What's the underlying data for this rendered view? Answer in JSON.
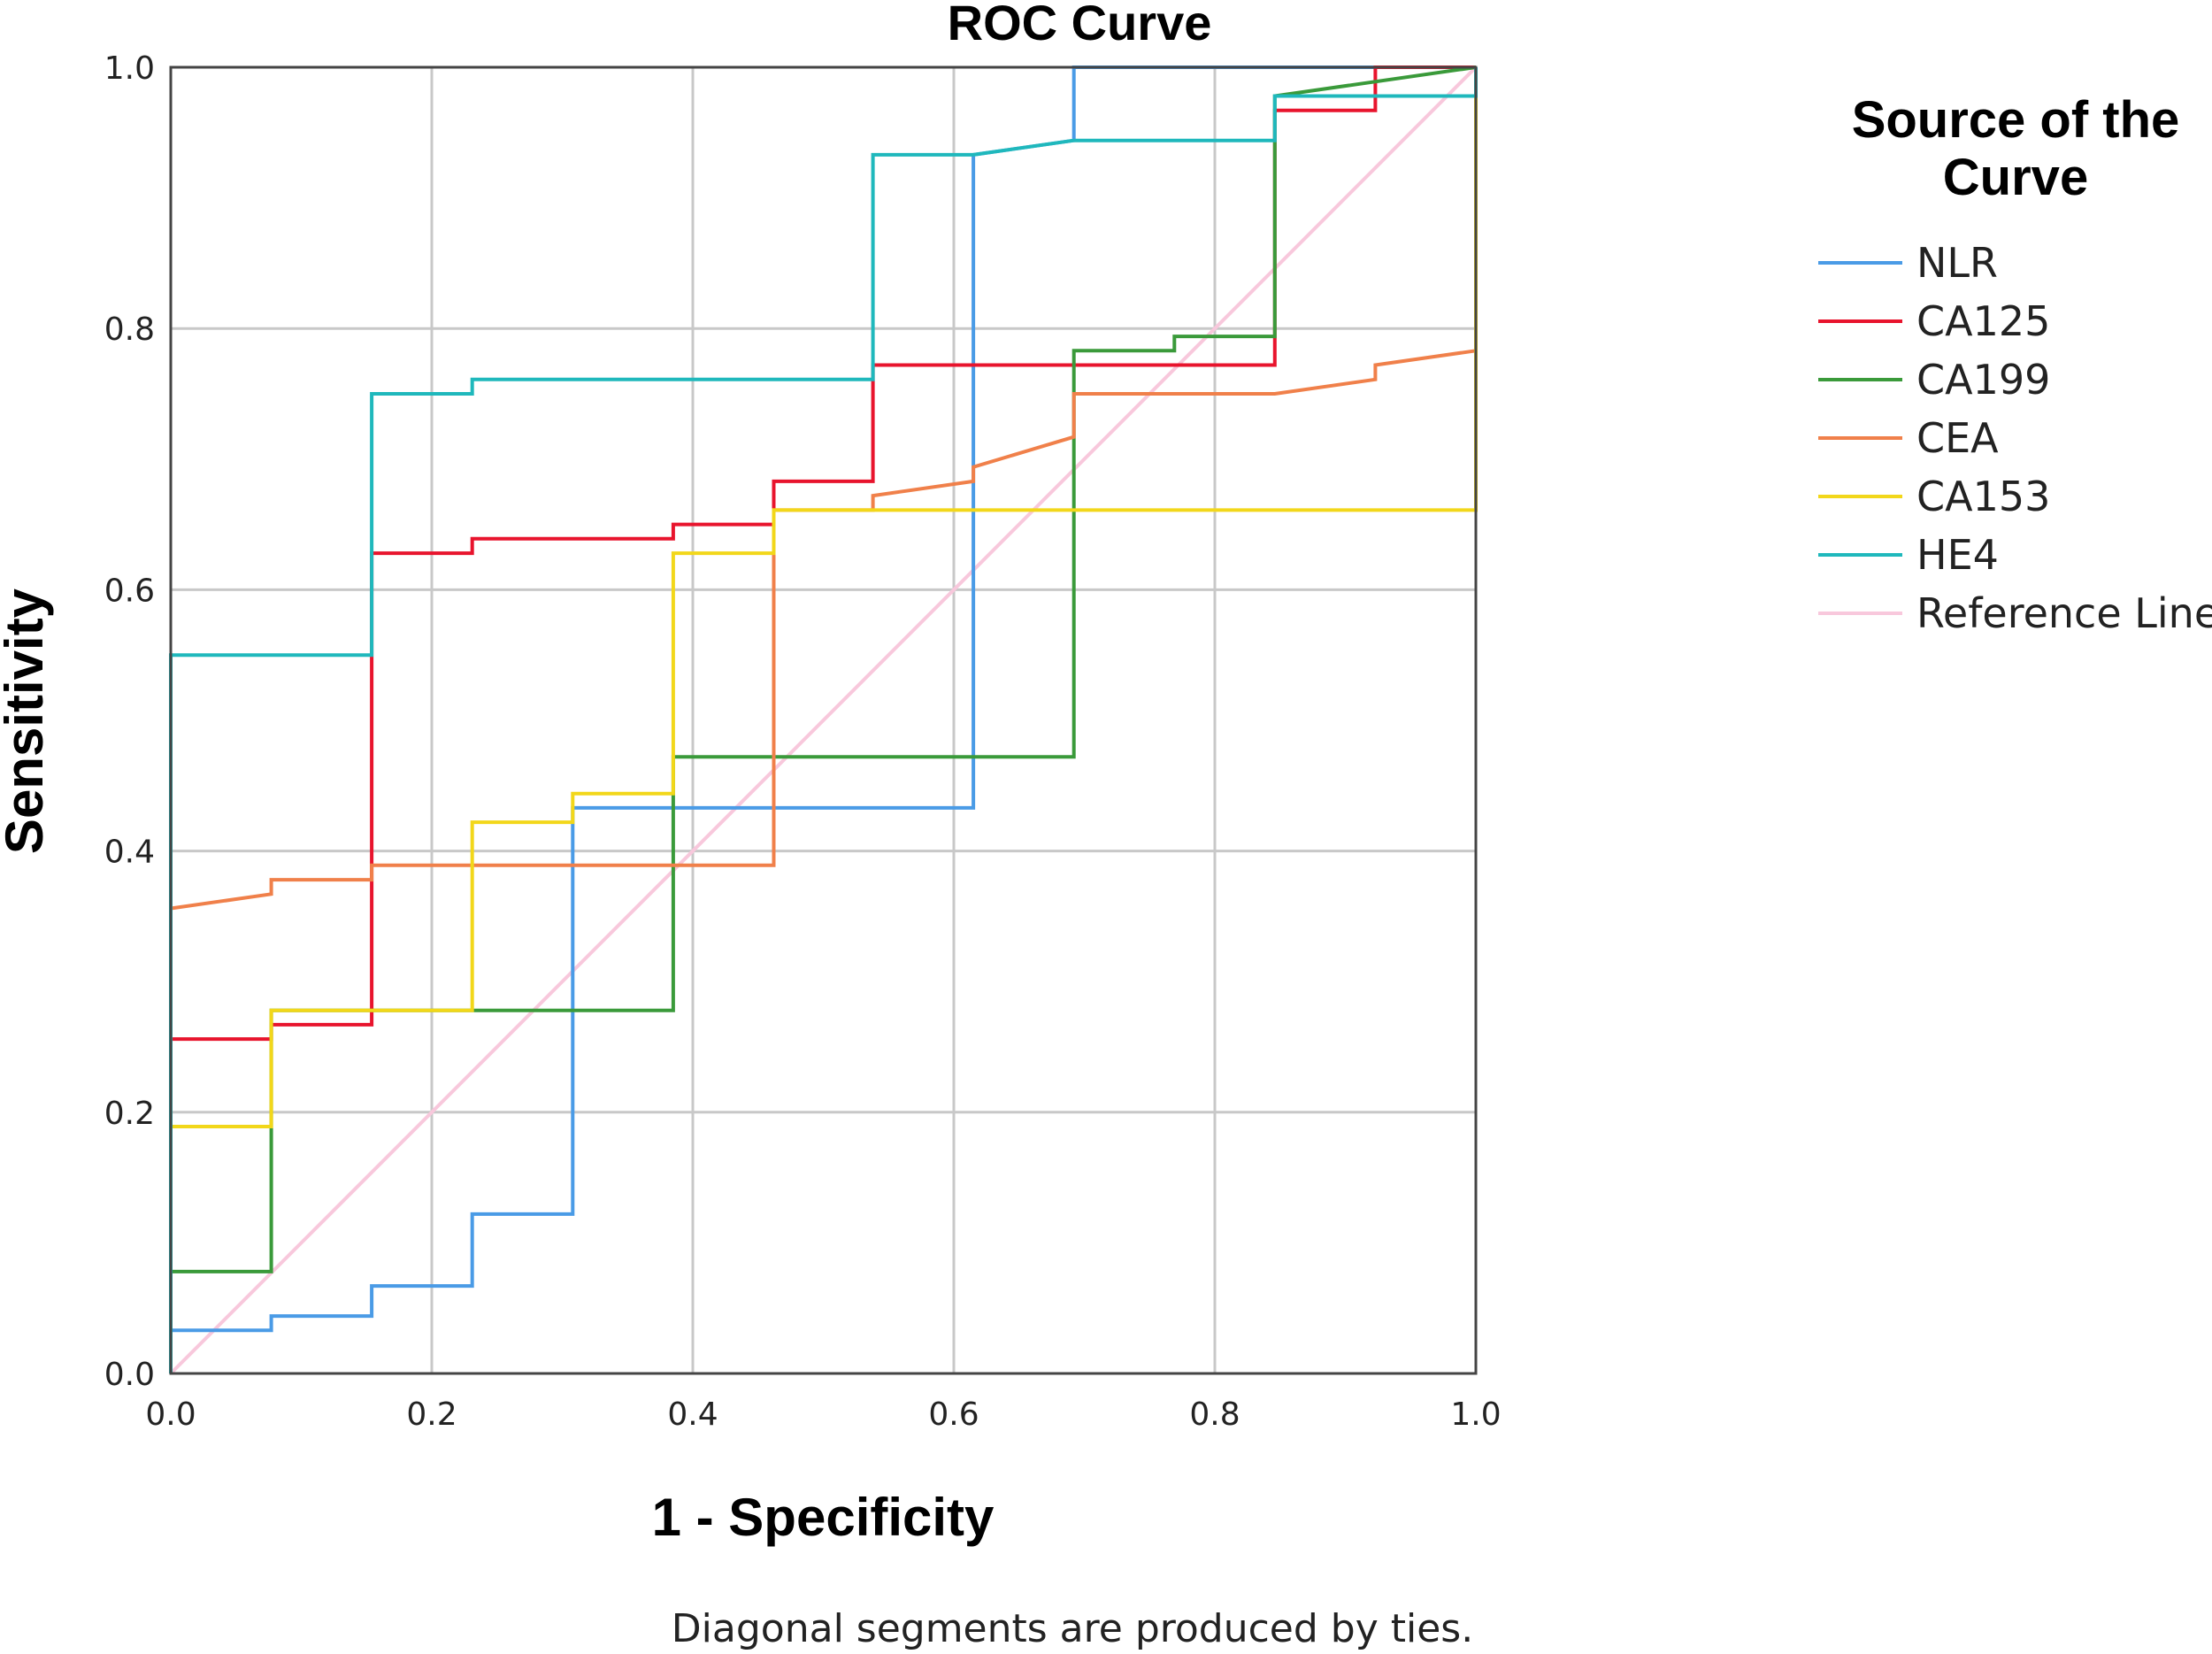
{
  "chart_data": {
    "type": "line",
    "title": "ROC Curve",
    "xlabel": "1 - Specificity",
    "ylabel": "Sensitivity",
    "xlim": [
      0,
      1
    ],
    "ylim": [
      0,
      1
    ],
    "x_ticks": [
      "0.0",
      "0.2",
      "0.4",
      "0.6",
      "0.8",
      "1.0"
    ],
    "y_ticks": [
      "0.0",
      "0.2",
      "0.4",
      "0.6",
      "0.8",
      "1.0"
    ],
    "grid": true,
    "legend": {
      "title_lines": [
        "Source of the",
        "Curve"
      ],
      "placement": "top-right, outside plot"
    },
    "footnote": "Diagonal segments are produced by ties.",
    "series": [
      {
        "name": "NLR",
        "color": "#4a9be6",
        "points": [
          [
            0,
            0
          ],
          [
            0,
            0.033
          ],
          [
            0.077,
            0.033
          ],
          [
            0.077,
            0.044
          ],
          [
            0.154,
            0.044
          ],
          [
            0.154,
            0.067
          ],
          [
            0.231,
            0.067
          ],
          [
            0.231,
            0.122
          ],
          [
            0.308,
            0.122
          ],
          [
            0.308,
            0.433
          ],
          [
            0.615,
            0.433
          ],
          [
            0.615,
            0.933
          ],
          [
            0.692,
            0.944
          ],
          [
            0.692,
            1.0
          ],
          [
            1.0,
            1.0
          ]
        ]
      },
      {
        "name": "CA125",
        "color": "#e8142d",
        "points": [
          [
            0,
            0
          ],
          [
            0,
            0.256
          ],
          [
            0.077,
            0.256
          ],
          [
            0.077,
            0.267
          ],
          [
            0.154,
            0.267
          ],
          [
            0.154,
            0.628
          ],
          [
            0.231,
            0.628
          ],
          [
            0.231,
            0.639
          ],
          [
            0.385,
            0.639
          ],
          [
            0.385,
            0.65
          ],
          [
            0.462,
            0.65
          ],
          [
            0.462,
            0.683
          ],
          [
            0.538,
            0.683
          ],
          [
            0.538,
            0.772
          ],
          [
            0.846,
            0.772
          ],
          [
            0.846,
            0.967
          ],
          [
            0.923,
            0.967
          ],
          [
            0.923,
            1.0
          ],
          [
            1.0,
            1.0
          ]
        ]
      },
      {
        "name": "CA199",
        "color": "#3a9a3a",
        "points": [
          [
            0,
            0
          ],
          [
            0,
            0.078
          ],
          [
            0.077,
            0.078
          ],
          [
            0.077,
            0.278
          ],
          [
            0.385,
            0.278
          ],
          [
            0.385,
            0.472
          ],
          [
            0.692,
            0.472
          ],
          [
            0.692,
            0.783
          ],
          [
            0.769,
            0.783
          ],
          [
            0.769,
            0.794
          ],
          [
            0.846,
            0.794
          ],
          [
            0.846,
            0.978
          ],
          [
            1.0,
            1.0
          ]
        ]
      },
      {
        "name": "CEA",
        "color": "#f0804a",
        "points": [
          [
            0,
            0
          ],
          [
            0,
            0.356
          ],
          [
            0.077,
            0.367
          ],
          [
            0.077,
            0.378
          ],
          [
            0.154,
            0.378
          ],
          [
            0.154,
            0.389
          ],
          [
            0.462,
            0.389
          ],
          [
            0.462,
            0.661
          ],
          [
            0.538,
            0.661
          ],
          [
            0.538,
            0.672
          ],
          [
            0.615,
            0.683
          ],
          [
            0.615,
            0.694
          ],
          [
            0.692,
            0.717
          ],
          [
            0.692,
            0.75
          ],
          [
            0.846,
            0.75
          ],
          [
            0.923,
            0.761
          ],
          [
            0.923,
            0.772
          ],
          [
            1.0,
            0.783
          ]
        ]
      },
      {
        "name": "CA153",
        "color": "#f2d71a",
        "points": [
          [
            0,
            0
          ],
          [
            0,
            0.189
          ],
          [
            0.077,
            0.189
          ],
          [
            0.077,
            0.278
          ],
          [
            0.231,
            0.278
          ],
          [
            0.231,
            0.422
          ],
          [
            0.308,
            0.422
          ],
          [
            0.308,
            0.444
          ],
          [
            0.385,
            0.444
          ],
          [
            0.385,
            0.628
          ],
          [
            0.462,
            0.628
          ],
          [
            0.462,
            0.661
          ],
          [
            1.0,
            0.661
          ],
          [
            1.0,
            1.0
          ]
        ]
      },
      {
        "name": "HE4",
        "color": "#1fb8bc",
        "points": [
          [
            0,
            0
          ],
          [
            0,
            0.55
          ],
          [
            0.154,
            0.55
          ],
          [
            0.154,
            0.75
          ],
          [
            0.231,
            0.75
          ],
          [
            0.231,
            0.761
          ],
          [
            0.538,
            0.761
          ],
          [
            0.538,
            0.933
          ],
          [
            0.615,
            0.933
          ],
          [
            0.692,
            0.944
          ],
          [
            0.846,
            0.944
          ],
          [
            0.846,
            0.978
          ],
          [
            1.0,
            0.978
          ],
          [
            1.0,
            1.0
          ]
        ]
      },
      {
        "name": "Reference Line",
        "color": "#f8c8dc",
        "points": [
          [
            0,
            0
          ],
          [
            1,
            1
          ]
        ]
      }
    ]
  }
}
